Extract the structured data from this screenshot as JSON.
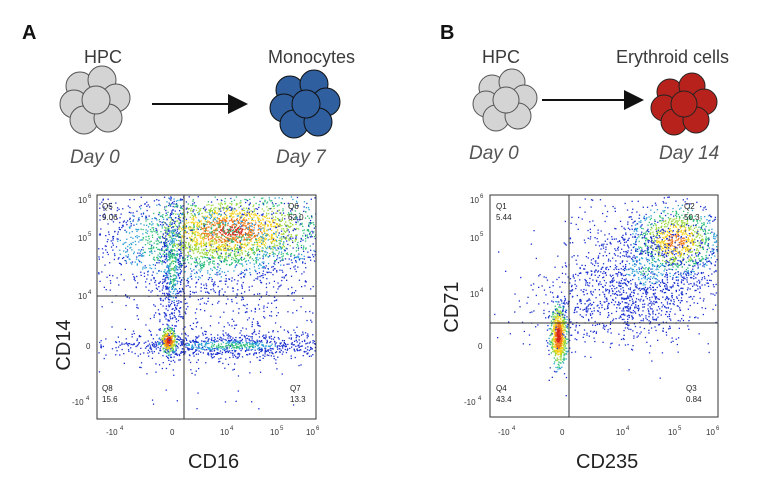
{
  "panel_a": {
    "letter": "A",
    "start_label": "HPC",
    "end_label": "Monocytes",
    "start_day": "Day 0",
    "end_day": "Day 7",
    "plot": {
      "xlabel": "CD16",
      "ylabel": "CD14",
      "x_ticks": [
        "-10",
        "4",
        "0",
        "10",
        "4",
        "10",
        "5",
        "10",
        "6"
      ],
      "quadrants": [
        {
          "name": "Q5",
          "value": "9.06"
        },
        {
          "name": "Q6",
          "value": "62.0"
        },
        {
          "name": "Q8",
          "value": "15.6"
        },
        {
          "name": "Q7",
          "value": "13.3"
        }
      ]
    }
  },
  "panel_b": {
    "letter": "B",
    "start_label": "HPC",
    "end_label": "Erythroid cells",
    "start_day": "Day 0",
    "end_day": "Day 14",
    "plot": {
      "xlabel": "CD235",
      "ylabel": "CD71",
      "quadrants": [
        {
          "name": "Q1",
          "value": "5.44"
        },
        {
          "name": "Q2",
          "value": "50.3"
        },
        {
          "name": "Q4",
          "value": "43.4"
        },
        {
          "name": "Q3",
          "value": "0.84"
        }
      ]
    }
  },
  "colors": {
    "hpc_fill": "#d4d4d4",
    "monocyte_fill": "#2f5f9e",
    "erythroid_fill": "#b7231c"
  }
}
